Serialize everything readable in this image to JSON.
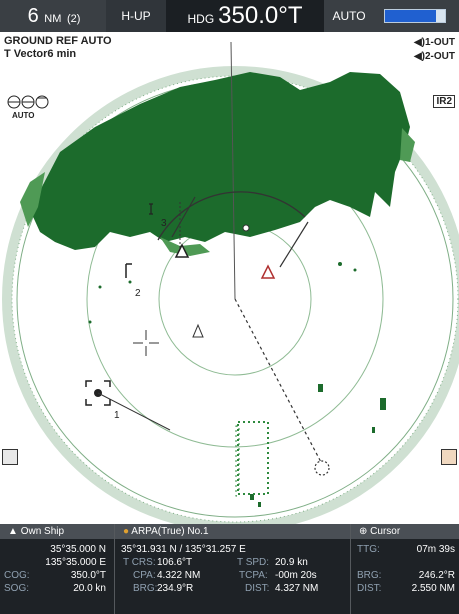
{
  "top_bar": {
    "range": "6",
    "range_unit": "NM",
    "range_count": "(2)",
    "mode": "H-UP",
    "heading_prefix": "HDG",
    "heading": "350.0°T",
    "gain_mode": "AUTO",
    "gain_level": 0.85
  },
  "overlay": {
    "line1": "GROUND REF AUTO",
    "line2": "T Vector6 min",
    "auto_label": "AUTO",
    "out1": "1-OUT",
    "out2": "2-OUT",
    "ir": "IR2"
  },
  "targets": [
    {
      "label": "1"
    },
    {
      "label": "2"
    },
    {
      "label": "3"
    }
  ],
  "own_ship": {
    "title": "Own Ship",
    "lat": "35°35.000 N",
    "lon": "135°35.000 E",
    "cog_label": "COG:",
    "cog": "350.0°T",
    "sog_label": "SOG:",
    "sog": "20.0 kn"
  },
  "arpa": {
    "title": "ARPA(True) No.1",
    "position": "35°31.931 N / 135°31.257 E",
    "tcrs_label": "T CRS:",
    "tcrs": "106.6°T",
    "tspd_label": "T SPD:",
    "tspd": "20.9 kn",
    "cpa_label": "CPA:",
    "cpa": "4.322 NM",
    "tcpa_label": "TCPA:",
    "tcpa": "-00m 20s",
    "brg_label": "BRG:",
    "brg": "234.9°R",
    "dist_label": "DIST:",
    "dist": "4.327 NM"
  },
  "cursor": {
    "title": "Cursor",
    "ttg_label": "TTG:",
    "ttg": "07m 39s",
    "brg_label": "BRG:",
    "brg": "246.2°R",
    "dist_label": "DIST:",
    "dist": "2.550 NM"
  },
  "colors": {
    "land": "#1c6b2c",
    "land_light": "#4f9a55",
    "ring": "#7fae86",
    "topbar": "#3a3f44",
    "panel": "#1e2226"
  }
}
